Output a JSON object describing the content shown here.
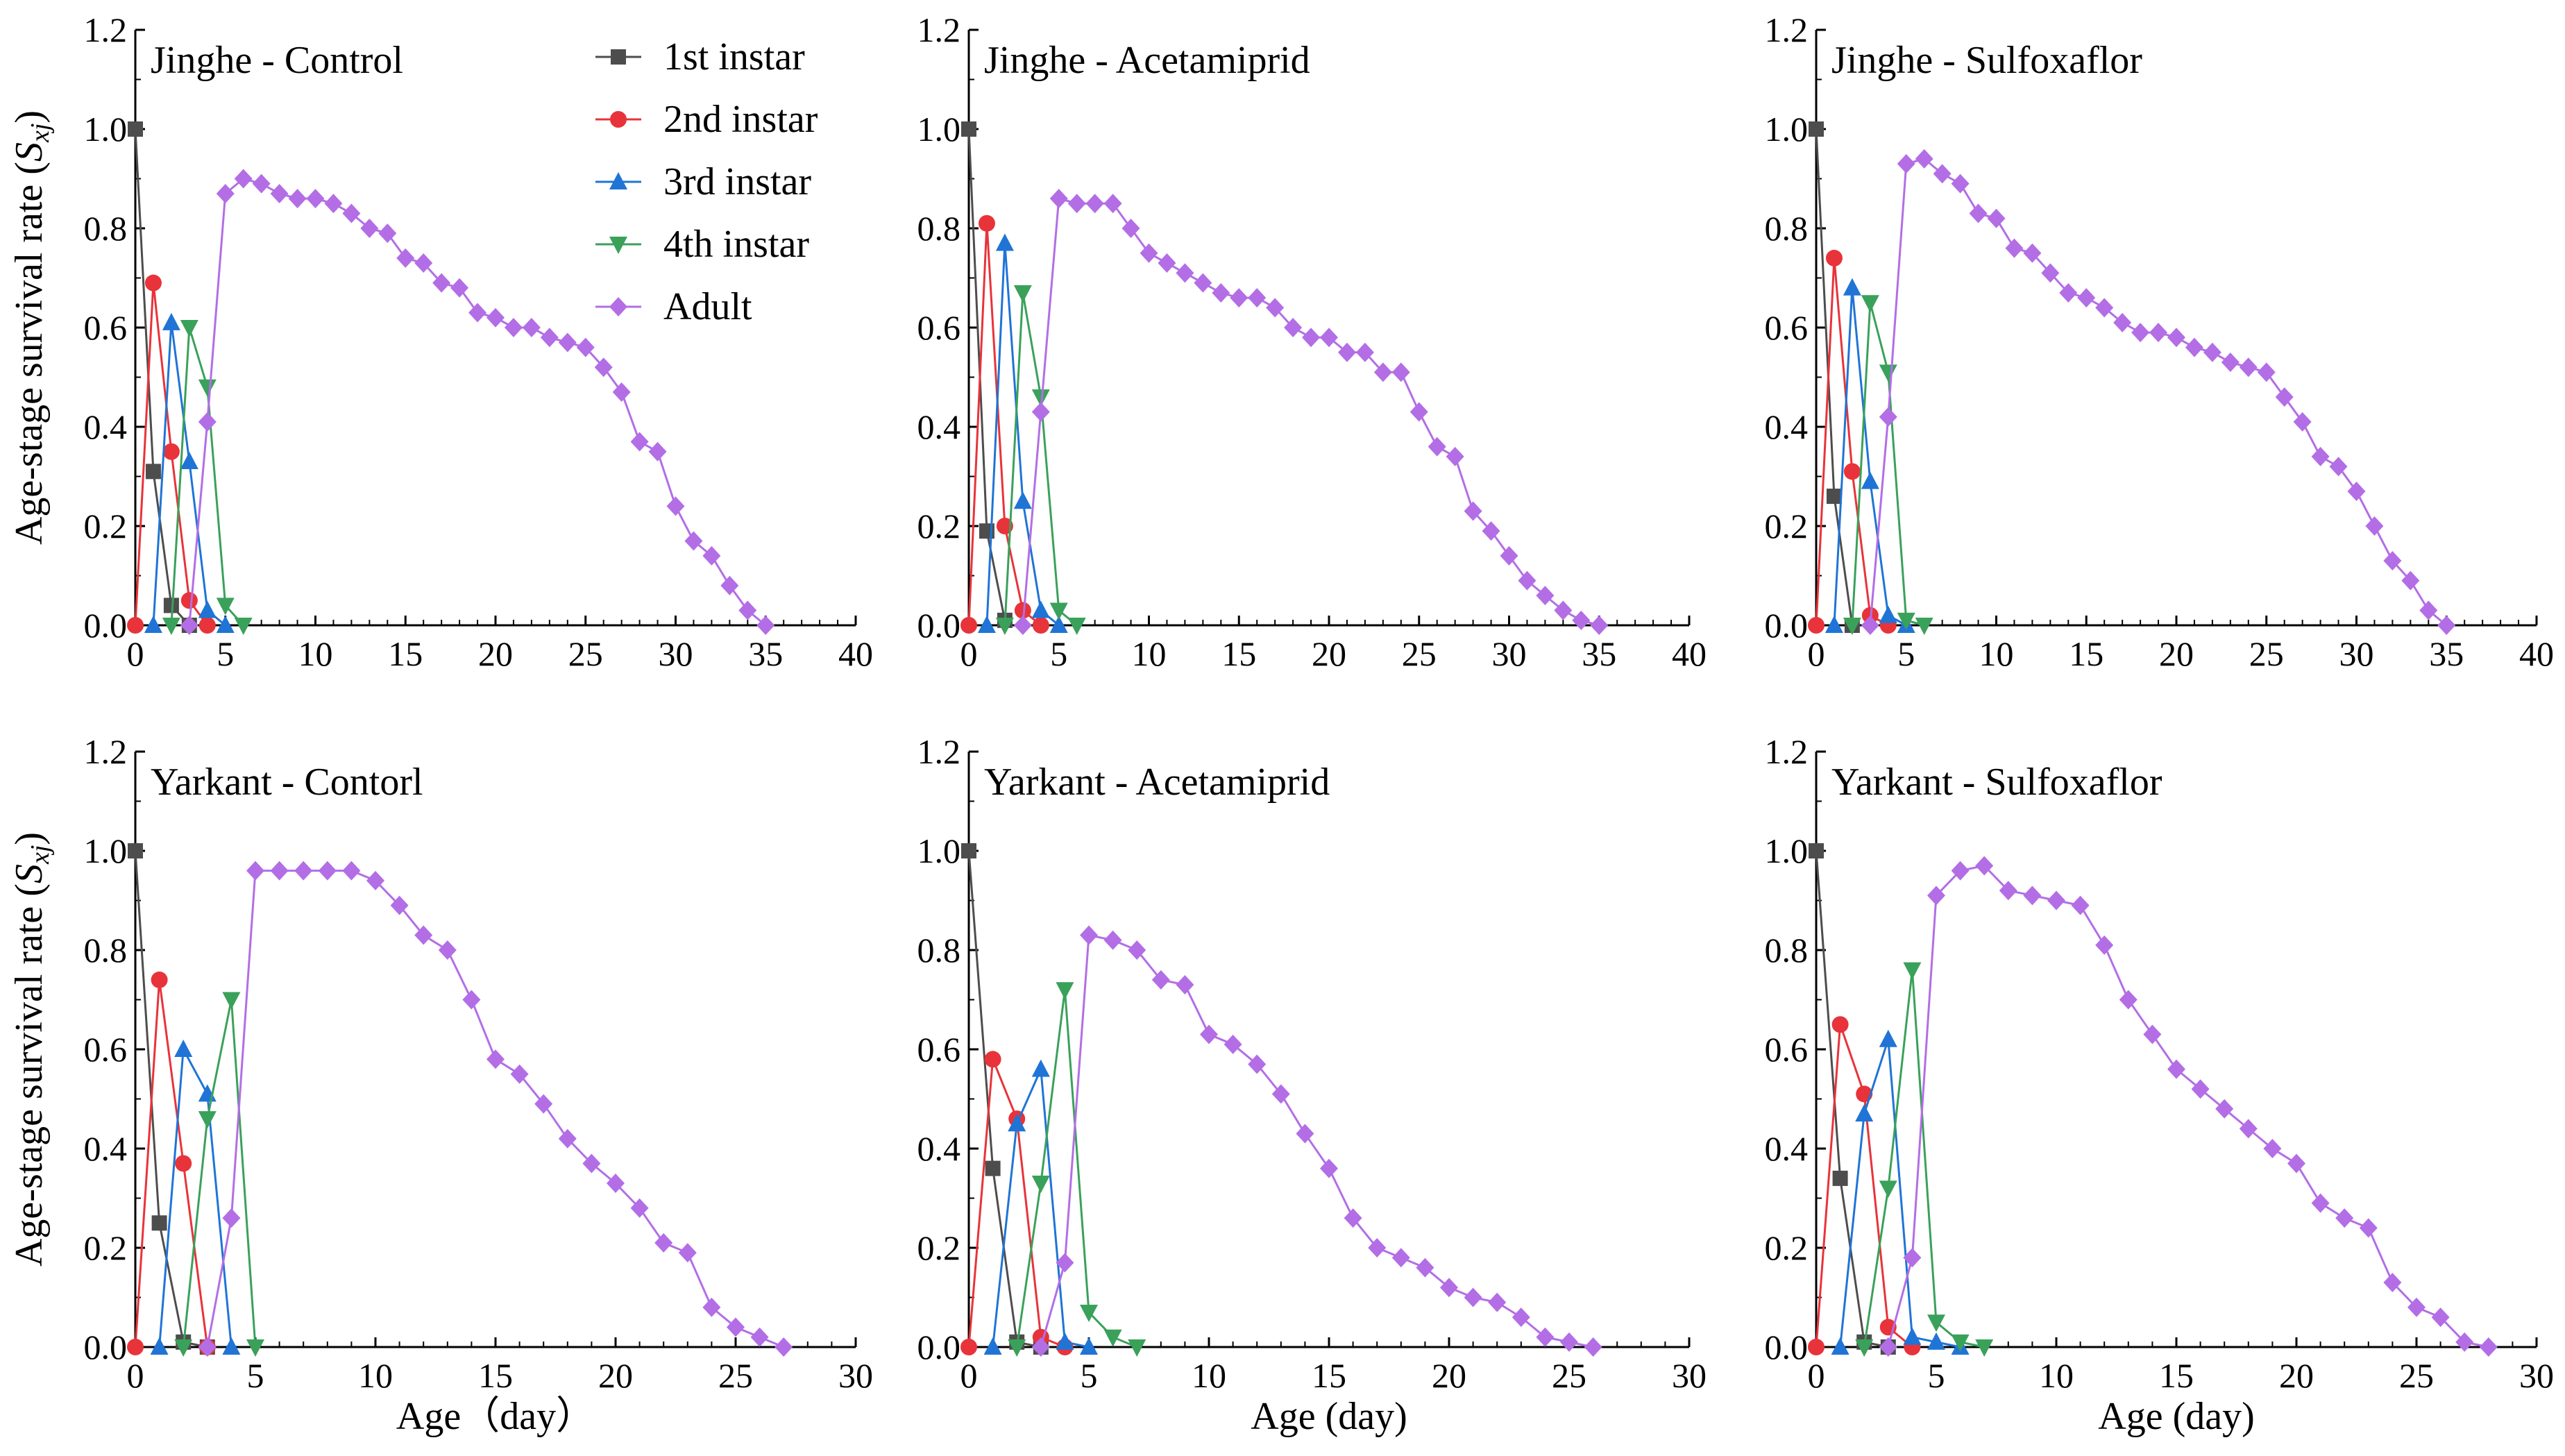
{
  "chart_data": {
    "type": "line",
    "layout": "2x3 grid",
    "ylabel": "Age-stage survival rate (",
    "ylabel_symbol": "S",
    "ylabel_subscript": "xj",
    "ylabel_close": ")",
    "legend_position": "top-right of first panel",
    "series_styles": [
      {
        "name": "1st instar",
        "color": "#4d4d4d",
        "marker": "square"
      },
      {
        "name": "2nd instar",
        "color": "#e8333a",
        "marker": "circle"
      },
      {
        "name": "3rd instar",
        "color": "#1f74d6",
        "marker": "triangle-up"
      },
      {
        "name": "4th instar",
        "color": "#3aa15a",
        "marker": "triangle-down"
      },
      {
        "name": "Adult",
        "color": "#b36ee6",
        "marker": "diamond"
      }
    ],
    "panels": [
      {
        "title": "Jinghe - Control",
        "xlim": [
          0,
          40
        ],
        "xticks": [
          0,
          5,
          10,
          15,
          20,
          25,
          30,
          35,
          40
        ],
        "ylim": [
          0,
          1.2
        ],
        "yticks": [
          "0.0",
          "0.2",
          "0.4",
          "0.6",
          "0.8",
          "1.0",
          "1.2"
        ],
        "xlabel": "",
        "series": [
          {
            "name": "1st instar",
            "x": [
              0,
              1,
              2,
              3
            ],
            "y": [
              1.0,
              0.31,
              0.04,
              0.0
            ]
          },
          {
            "name": "2nd instar",
            "x": [
              0,
              1,
              2,
              3,
              4
            ],
            "y": [
              0.0,
              0.69,
              0.35,
              0.05,
              0.0
            ]
          },
          {
            "name": "3rd instar",
            "x": [
              1,
              2,
              3,
              4,
              5
            ],
            "y": [
              0.0,
              0.61,
              0.33,
              0.03,
              0.0
            ]
          },
          {
            "name": "4th instar",
            "x": [
              2,
              3,
              4,
              5,
              6
            ],
            "y": [
              0.0,
              0.6,
              0.48,
              0.04,
              0.0
            ]
          },
          {
            "name": "Adult",
            "x": [
              3,
              4,
              5,
              6,
              7,
              8,
              9,
              10,
              11,
              12,
              13,
              14,
              15,
              16,
              17,
              18,
              19,
              20,
              21,
              22,
              23,
              24,
              25,
              26,
              27,
              28,
              29,
              30,
              31,
              32,
              33,
              34,
              35
            ],
            "y": [
              0.0,
              0.41,
              0.87,
              0.9,
              0.89,
              0.87,
              0.86,
              0.86,
              0.85,
              0.83,
              0.8,
              0.79,
              0.74,
              0.73,
              0.69,
              0.68,
              0.63,
              0.62,
              0.6,
              0.6,
              0.58,
              0.57,
              0.56,
              0.52,
              0.47,
              0.37,
              0.35,
              0.24,
              0.17,
              0.14,
              0.08,
              0.03,
              0.0
            ]
          }
        ]
      },
      {
        "title": "Jinghe - Acetamiprid",
        "xlim": [
          0,
          40
        ],
        "xticks": [
          0,
          5,
          10,
          15,
          20,
          25,
          30,
          35,
          40
        ],
        "ylim": [
          0,
          1.2
        ],
        "yticks": [
          "0.0",
          "0.2",
          "0.4",
          "0.6",
          "0.8",
          "1.0",
          "1.2"
        ],
        "xlabel": "",
        "series": [
          {
            "name": "1st instar",
            "x": [
              0,
              1,
              2
            ],
            "y": [
              1.0,
              0.19,
              0.01
            ]
          },
          {
            "name": "2nd instar",
            "x": [
              0,
              1,
              2,
              3,
              4
            ],
            "y": [
              0.0,
              0.81,
              0.2,
              0.03,
              0.0
            ]
          },
          {
            "name": "3rd instar",
            "x": [
              1,
              2,
              3,
              4,
              5
            ],
            "y": [
              0.0,
              0.77,
              0.25,
              0.03,
              0.0
            ]
          },
          {
            "name": "4th instar",
            "x": [
              2,
              3,
              4,
              5,
              6
            ],
            "y": [
              0.0,
              0.67,
              0.46,
              0.03,
              0.0
            ]
          },
          {
            "name": "Adult",
            "x": [
              3,
              4,
              5,
              6,
              7,
              8,
              9,
              10,
              11,
              12,
              13,
              14,
              15,
              16,
              17,
              18,
              19,
              20,
              21,
              22,
              23,
              24,
              25,
              26,
              27,
              28,
              29,
              30,
              31,
              32,
              33,
              34,
              35
            ],
            "y": [
              0.0,
              0.43,
              0.86,
              0.85,
              0.85,
              0.85,
              0.8,
              0.75,
              0.73,
              0.71,
              0.69,
              0.67,
              0.66,
              0.66,
              0.64,
              0.6,
              0.58,
              0.58,
              0.55,
              0.55,
              0.51,
              0.51,
              0.43,
              0.36,
              0.34,
              0.23,
              0.19,
              0.14,
              0.09,
              0.06,
              0.03,
              0.01,
              0.0
            ]
          }
        ]
      },
      {
        "title": "Jinghe - Sulfoxaflor",
        "xlim": [
          0,
          40
        ],
        "xticks": [
          0,
          5,
          10,
          15,
          20,
          25,
          30,
          35,
          40
        ],
        "ylim": [
          0,
          1.2
        ],
        "yticks": [
          "0.0",
          "0.2",
          "0.4",
          "0.6",
          "0.8",
          "1.0",
          "1.2"
        ],
        "xlabel": "",
        "series": [
          {
            "name": "1st instar",
            "x": [
              0,
              1,
              2
            ],
            "y": [
              1.0,
              0.26,
              0.0
            ]
          },
          {
            "name": "2nd instar",
            "x": [
              0,
              1,
              2,
              3,
              4
            ],
            "y": [
              0.0,
              0.74,
              0.31,
              0.02,
              0.0
            ]
          },
          {
            "name": "3rd instar",
            "x": [
              1,
              2,
              3,
              4,
              5
            ],
            "y": [
              0.0,
              0.68,
              0.29,
              0.02,
              0.0
            ]
          },
          {
            "name": "4th instar",
            "x": [
              2,
              3,
              4,
              5,
              6
            ],
            "y": [
              0.0,
              0.65,
              0.51,
              0.01,
              0.0
            ]
          },
          {
            "name": "Adult",
            "x": [
              3,
              4,
              5,
              6,
              7,
              8,
              9,
              10,
              11,
              12,
              13,
              14,
              15,
              16,
              17,
              18,
              19,
              20,
              21,
              22,
              23,
              24,
              25,
              26,
              27,
              28,
              29,
              30,
              31,
              32,
              33,
              34,
              35
            ],
            "y": [
              0.0,
              0.42,
              0.93,
              0.94,
              0.91,
              0.89,
              0.83,
              0.82,
              0.76,
              0.75,
              0.71,
              0.67,
              0.66,
              0.64,
              0.61,
              0.59,
              0.59,
              0.58,
              0.56,
              0.55,
              0.53,
              0.52,
              0.51,
              0.46,
              0.41,
              0.34,
              0.32,
              0.27,
              0.2,
              0.13,
              0.09,
              0.03,
              0.0
            ]
          }
        ]
      },
      {
        "title": "Yarkant - Contorl",
        "xlim": [
          0,
          30
        ],
        "xticks": [
          0,
          5,
          10,
          15,
          20,
          25,
          30
        ],
        "ylim": [
          0,
          1.2
        ],
        "yticks": [
          "0.0",
          "0.2",
          "0.4",
          "0.6",
          "0.8",
          "1.0",
          "1.2"
        ],
        "xlabel": "Age（day）",
        "series": [
          {
            "name": "1st instar",
            "x": [
              0,
              1,
              2,
              3
            ],
            "y": [
              1.0,
              0.25,
              0.01,
              0.0
            ]
          },
          {
            "name": "2nd instar",
            "x": [
              0,
              1,
              2,
              3
            ],
            "y": [
              0.0,
              0.74,
              0.37,
              0.0
            ]
          },
          {
            "name": "3rd instar",
            "x": [
              1,
              2,
              3,
              4
            ],
            "y": [
              0.0,
              0.6,
              0.51,
              0.0
            ]
          },
          {
            "name": "4th instar",
            "x": [
              2,
              3,
              4,
              5
            ],
            "y": [
              0.0,
              0.46,
              0.7,
              0.0
            ]
          },
          {
            "name": "Adult",
            "x": [
              3,
              4,
              5,
              6,
              7,
              8,
              9,
              10,
              11,
              12,
              13,
              14,
              15,
              16,
              17,
              18,
              19,
              20,
              21,
              22,
              23,
              24,
              25,
              26,
              27
            ],
            "y": [
              0.0,
              0.26,
              0.96,
              0.96,
              0.96,
              0.96,
              0.96,
              0.94,
              0.89,
              0.83,
              0.8,
              0.7,
              0.58,
              0.55,
              0.49,
              0.42,
              0.37,
              0.33,
              0.28,
              0.21,
              0.19,
              0.08,
              0.04,
              0.02,
              0.0
            ]
          }
        ]
      },
      {
        "title": "Yarkant - Acetamiprid",
        "xlim": [
          0,
          30
        ],
        "xticks": [
          0,
          5,
          10,
          15,
          20,
          25,
          30
        ],
        "ylim": [
          0,
          1.2
        ],
        "yticks": [
          "0.0",
          "0.2",
          "0.4",
          "0.6",
          "0.8",
          "1.0",
          "1.2"
        ],
        "xlabel": "Age (day)",
        "series": [
          {
            "name": "1st instar",
            "x": [
              0,
              1,
              2,
              3
            ],
            "y": [
              1.0,
              0.36,
              0.01,
              0.0
            ]
          },
          {
            "name": "2nd instar",
            "x": [
              0,
              1,
              2,
              3,
              4
            ],
            "y": [
              0.0,
              0.58,
              0.46,
              0.02,
              0.0
            ]
          },
          {
            "name": "3rd instar",
            "x": [
              1,
              2,
              3,
              4,
              5
            ],
            "y": [
              0.0,
              0.45,
              0.56,
              0.01,
              0.0
            ]
          },
          {
            "name": "4th instar",
            "x": [
              2,
              3,
              4,
              5,
              6,
              7
            ],
            "y": [
              0.0,
              0.33,
              0.72,
              0.07,
              0.02,
              0.0
            ]
          },
          {
            "name": "Adult",
            "x": [
              3,
              4,
              5,
              6,
              7,
              8,
              9,
              10,
              11,
              12,
              13,
              14,
              15,
              16,
              17,
              18,
              19,
              20,
              21,
              22,
              23,
              24,
              25,
              26
            ],
            "y": [
              0.0,
              0.17,
              0.83,
              0.82,
              0.8,
              0.74,
              0.73,
              0.63,
              0.61,
              0.57,
              0.51,
              0.43,
              0.36,
              0.26,
              0.2,
              0.18,
              0.16,
              0.12,
              0.1,
              0.09,
              0.06,
              0.02,
              0.01,
              0.0
            ]
          }
        ]
      },
      {
        "title": "Yarkant - Sulfoxaflor",
        "xlim": [
          0,
          30
        ],
        "xticks": [
          0,
          5,
          10,
          15,
          20,
          25,
          30
        ],
        "ylim": [
          0,
          1.2
        ],
        "yticks": [
          "0.0",
          "0.2",
          "0.4",
          "0.6",
          "0.8",
          "1.0",
          "1.2"
        ],
        "xlabel": "Age (day)",
        "series": [
          {
            "name": "1st instar",
            "x": [
              0,
              1,
              2,
              3
            ],
            "y": [
              1.0,
              0.34,
              0.01,
              0.0
            ]
          },
          {
            "name": "2nd instar",
            "x": [
              0,
              1,
              2,
              3,
              4
            ],
            "y": [
              0.0,
              0.65,
              0.51,
              0.04,
              0.0
            ]
          },
          {
            "name": "3rd instar",
            "x": [
              1,
              2,
              3,
              4,
              5,
              6
            ],
            "y": [
              0.0,
              0.47,
              0.62,
              0.02,
              0.01,
              0.0
            ]
          },
          {
            "name": "4th instar",
            "x": [
              2,
              3,
              4,
              5,
              6,
              7
            ],
            "y": [
              0.0,
              0.32,
              0.76,
              0.05,
              0.01,
              0.0
            ]
          },
          {
            "name": "Adult",
            "x": [
              3,
              4,
              5,
              6,
              7,
              8,
              9,
              10,
              11,
              12,
              13,
              14,
              15,
              16,
              17,
              18,
              19,
              20,
              21,
              22,
              23,
              24,
              25,
              26,
              27,
              28
            ],
            "y": [
              0.0,
              0.18,
              0.91,
              0.96,
              0.97,
              0.92,
              0.91,
              0.9,
              0.89,
              0.81,
              0.7,
              0.63,
              0.56,
              0.52,
              0.48,
              0.44,
              0.4,
              0.37,
              0.29,
              0.26,
              0.24,
              0.13,
              0.08,
              0.06,
              0.01,
              0.0
            ]
          }
        ]
      }
    ]
  }
}
